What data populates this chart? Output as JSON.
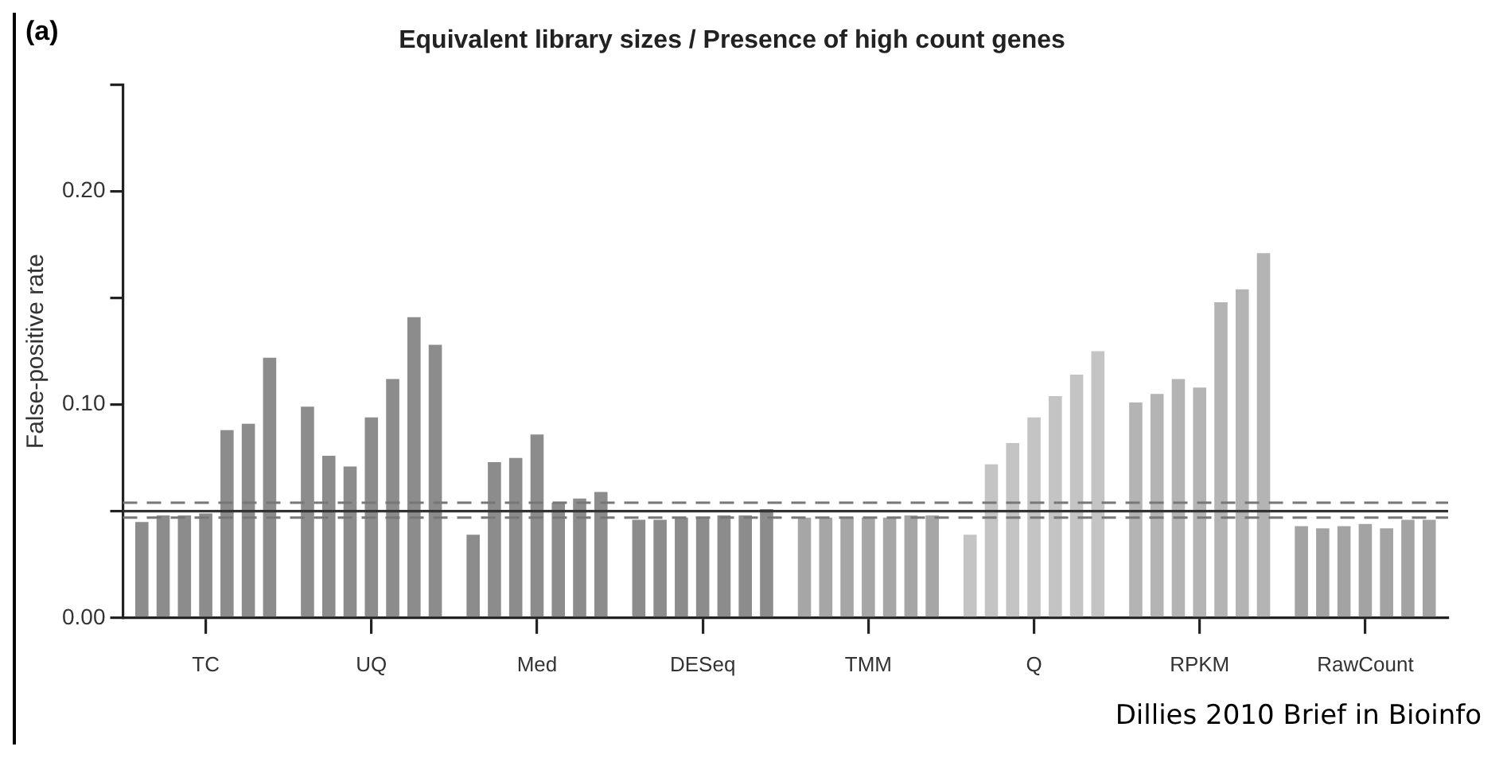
{
  "chart_data": {
    "type": "bar",
    "title": "Equivalent library sizes / Presence of high count genes",
    "ylabel": "False-positive rate",
    "annotations": [
      "(a)",
      "Dillies 2010 Brief in Bioinfo"
    ],
    "categories": [
      "TC",
      "UQ",
      "Med",
      "DESeq",
      "TMM",
      "Q",
      "RPKM",
      "RawCount"
    ],
    "series": [
      {
        "colors": [
          "#8c8c8c",
          "#8c8c8c",
          "#8c8c8c",
          "#8c8c8c",
          "#a6a6a6",
          "#c4c4c4",
          "#b4b4b4",
          "#a3a3a3"
        ],
        "values": [
          0.045,
          0.099,
          0.039,
          0.046,
          0.047,
          0.039,
          0.101,
          0.043
        ]
      },
      {
        "colors": [
          "#8c8c8c",
          "#8c8c8c",
          "#8c8c8c",
          "#8c8c8c",
          "#a6a6a6",
          "#c4c4c4",
          "#b4b4b4",
          "#a3a3a3"
        ],
        "values": [
          0.048,
          0.076,
          0.073,
          0.046,
          0.047,
          0.072,
          0.105,
          0.042
        ]
      },
      {
        "colors": [
          "#8c8c8c",
          "#8c8c8c",
          "#8c8c8c",
          "#8c8c8c",
          "#a6a6a6",
          "#c4c4c4",
          "#b4b4b4",
          "#a3a3a3"
        ],
        "values": [
          0.048,
          0.071,
          0.075,
          0.047,
          0.047,
          0.082,
          0.112,
          0.043
        ]
      },
      {
        "colors": [
          "#8c8c8c",
          "#8c8c8c",
          "#8c8c8c",
          "#8c8c8c",
          "#a6a6a6",
          "#c4c4c4",
          "#b4b4b4",
          "#a3a3a3"
        ],
        "values": [
          0.049,
          0.094,
          0.086,
          0.047,
          0.047,
          0.094,
          0.108,
          0.044
        ]
      },
      {
        "colors": [
          "#8c8c8c",
          "#8c8c8c",
          "#8c8c8c",
          "#8c8c8c",
          "#a6a6a6",
          "#c4c4c4",
          "#b4b4b4",
          "#a3a3a3"
        ],
        "values": [
          0.088,
          0.112,
          0.054,
          0.048,
          0.047,
          0.104,
          0.148,
          0.042
        ]
      },
      {
        "colors": [
          "#8c8c8c",
          "#8c8c8c",
          "#8c8c8c",
          "#8c8c8c",
          "#a6a6a6",
          "#c4c4c4",
          "#b4b4b4",
          "#a3a3a3"
        ],
        "values": [
          0.091,
          0.141,
          0.056,
          0.048,
          0.048,
          0.114,
          0.154,
          0.046
        ]
      },
      {
        "colors": [
          "#8c8c8c",
          "#8c8c8c",
          "#8c8c8c",
          "#8c8c8c",
          "#a6a6a6",
          "#c4c4c4",
          "#b4b4b4",
          "#a3a3a3"
        ],
        "values": [
          0.122,
          0.128,
          0.059,
          0.051,
          0.048,
          0.125,
          0.171,
          0.046
        ]
      }
    ],
    "ylim": [
      0,
      0.25
    ],
    "yticks": [
      {
        "value": 0,
        "label": "0.00"
      },
      {
        "value": 0.05,
        "label": null
      },
      {
        "value": 0.1,
        "label": "0.10"
      },
      {
        "value": 0.15,
        "label": null
      },
      {
        "value": 0.2,
        "label": "0.20"
      },
      {
        "value": 0.25,
        "label": null
      }
    ],
    "ref_lines": [
      {
        "axis": "y",
        "value": 0.05,
        "color": "#333333",
        "line_style": "solid"
      },
      {
        "axis": "y",
        "value": 0.054,
        "color": "#777777",
        "line_style": "dashed"
      },
      {
        "axis": "y",
        "value": 0.047,
        "color": "#777777",
        "line_style": "dashed"
      }
    ]
  }
}
